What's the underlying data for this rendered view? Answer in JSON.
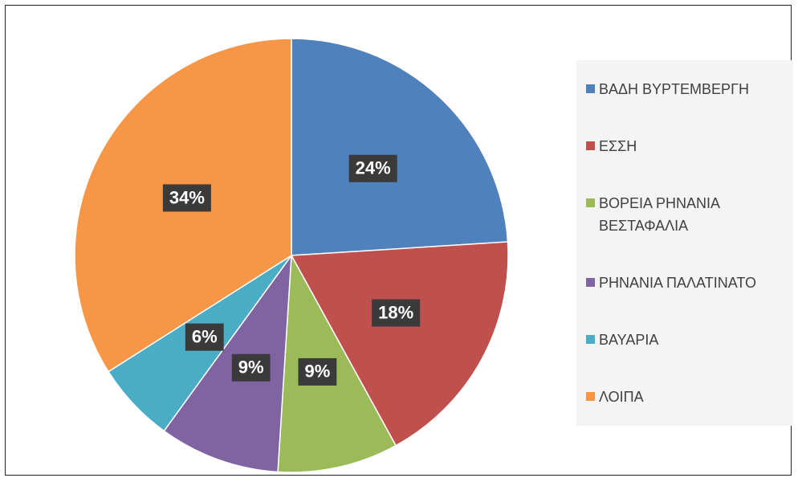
{
  "chart_data": {
    "type": "pie",
    "categories": [
      "ΒΑΔΗ ΒΥΡΤΕΜΒΕΡΓΗ",
      "ΕΣΣΗ",
      "ΒΟΡΕΙΑ ΡΗΝΑΝΙΑ ΒΕΣΤΑΦΑΛΙΑ",
      "ΡΗΝΑΝΙΑ ΠΑΛΑΤΙΝΑΤΟ",
      "ΒΑΥΑΡΙΑ",
      "ΛΟΙΠΑ"
    ],
    "values": [
      24,
      18,
      9,
      9,
      6,
      34
    ],
    "value_labels": [
      "24%",
      "18%",
      "9%",
      "9%",
      "6%",
      "34%"
    ],
    "colors": [
      "#4f81bd",
      "#c0504d",
      "#9bbb59",
      "#8064a2",
      "#4bacc6",
      "#f79646"
    ],
    "legend": "right"
  }
}
